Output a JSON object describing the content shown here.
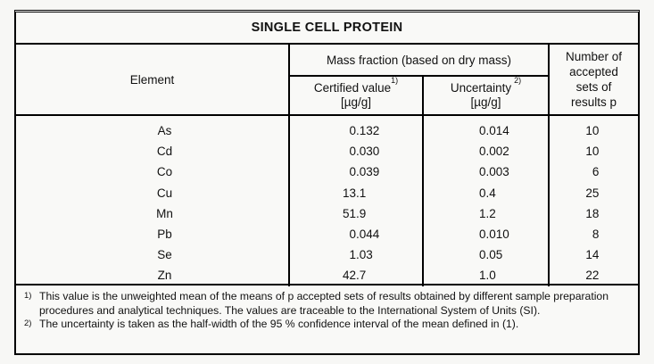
{
  "table": {
    "title": "SINGLE CELL PROTEIN",
    "header": {
      "element": "Element",
      "mass_fraction": "Mass fraction (based on dry mass)",
      "certified": {
        "label": "Certified value",
        "sup": "1)",
        "unit": "[µg/g]"
      },
      "uncertainty": {
        "label": "Uncertainty",
        "sup": "2)",
        "unit": "[µg/g]"
      },
      "accepted_sets": "Number of\naccepted\nsets of\nresults p"
    },
    "rows": [
      {
        "element": "As",
        "certified": "0.132",
        "uncertainty": "0.014",
        "p": "10"
      },
      {
        "element": "Cd",
        "certified": "0.030",
        "uncertainty": "0.002",
        "p": "10"
      },
      {
        "element": "Co",
        "certified": "0.039",
        "uncertainty": "0.003",
        "p": "6"
      },
      {
        "element": "Cu",
        "certified": "13.1",
        "uncertainty": "0.4",
        "p": "25"
      },
      {
        "element": "Mn",
        "certified": "51.9",
        "uncertainty": "1.2",
        "p": "18"
      },
      {
        "element": "Pb",
        "certified": "0.044",
        "uncertainty": "0.010",
        "p": "8"
      },
      {
        "element": "Se",
        "certified": "1.03",
        "uncertainty": "0.05",
        "p": "14"
      },
      {
        "element": "Zn",
        "certified": "42.7",
        "uncertainty": "1.0",
        "p": "22"
      }
    ],
    "footnotes": [
      {
        "marker": "1)",
        "text": "This value is the unweighted mean of the means of p accepted sets of results obtained by different sample preparation procedures and analytical techniques. The values are traceable to the International System of Units (SI)."
      },
      {
        "marker": "2)",
        "text": "The uncertainty is taken as the half-width of the 95 % confidence interval of the mean defined in (1)."
      }
    ]
  }
}
